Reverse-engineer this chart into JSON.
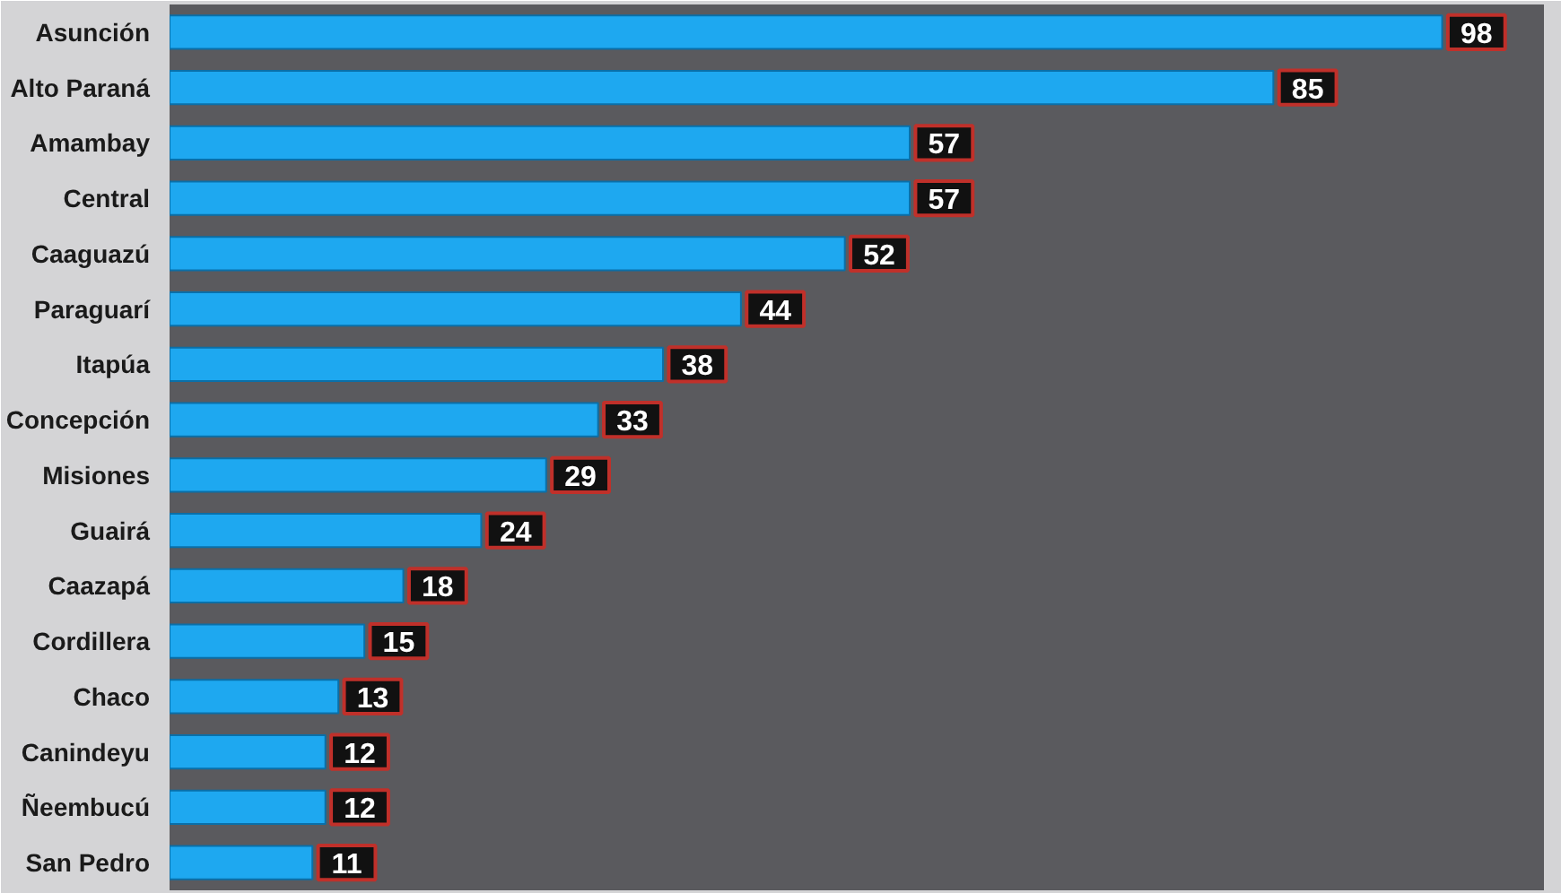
{
  "chart_data": {
    "type": "bar",
    "orientation": "horizontal",
    "data_labels": true,
    "color": "#1ea8f0",
    "categories": [
      "Asunción",
      "Alto Paraná",
      "Amambay",
      "Central",
      "Caaguazú",
      "Paraguarí",
      "Itapúa",
      "Concepción",
      "Misiones",
      "Guairá",
      "Caazapá",
      "Cordillera",
      "Chaco",
      "Canindeyu",
      "Ñeembucú",
      "San Pedro"
    ],
    "values": [
      98,
      85,
      57,
      57,
      52,
      44,
      38,
      33,
      29,
      24,
      18,
      15,
      13,
      12,
      12,
      11
    ]
  }
}
